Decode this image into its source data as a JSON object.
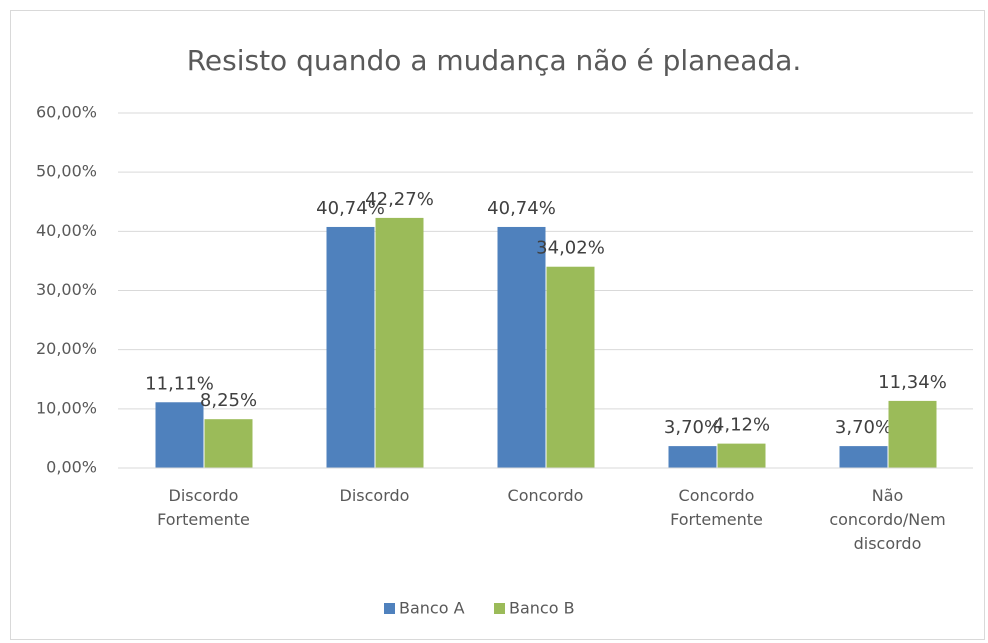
{
  "chart_data": {
    "type": "bar",
    "title": "Resisto quando a mudança não é planeada.",
    "categories": [
      "Discordo Fortemente",
      "Discordo",
      "Concordo",
      "Concordo Fortemente",
      "Não concordo/Nem discordo"
    ],
    "series": [
      {
        "name": "Banco A",
        "color": "#4f81bd",
        "values": [
          11.11,
          40.74,
          40.74,
          3.7,
          3.7
        ],
        "value_labels": [
          "11,11%",
          "40,74%",
          "40,74%",
          "3,70%",
          "3,70%"
        ]
      },
      {
        "name": "Banco B",
        "color": "#9bbb59",
        "values": [
          8.25,
          42.27,
          34.02,
          4.12,
          11.34
        ],
        "value_labels": [
          "8,25%",
          "42,27%",
          "34,02%",
          "4,12%",
          "11,34%"
        ]
      }
    ],
    "ylim": [
      0,
      60
    ],
    "yticks": [
      {
        "value": 0,
        "label": "0,00%"
      },
      {
        "value": 10,
        "label": "10,00%"
      },
      {
        "value": 20,
        "label": "20,00%"
      },
      {
        "value": 30,
        "label": "30,00%"
      },
      {
        "value": 40,
        "label": "40,00%"
      },
      {
        "value": 50,
        "label": "50,00%"
      },
      {
        "value": 60,
        "label": "60,00%"
      }
    ],
    "grid": true,
    "legend": "bottom"
  }
}
